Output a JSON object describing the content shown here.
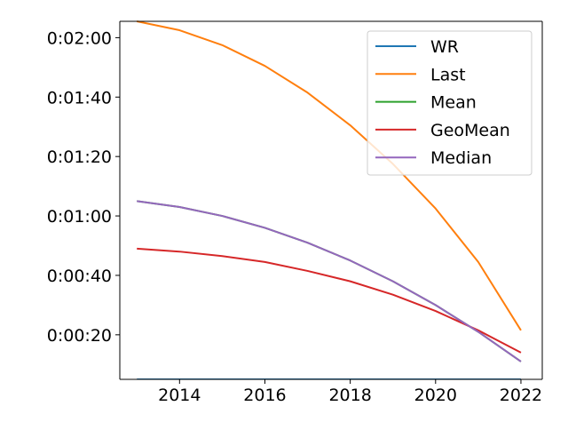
{
  "chart_data": {
    "type": "line",
    "title": "",
    "xlabel": "",
    "ylabel": "",
    "x": [
      2013,
      2014,
      2015,
      2016,
      2017,
      2018,
      2019,
      2020,
      2021,
      2022
    ],
    "xlim": [
      2012.6,
      2022.5
    ],
    "ylim": [
      5,
      125.5
    ],
    "y_unit": "seconds",
    "x_ticks": [
      2014,
      2016,
      2018,
      2020,
      2022
    ],
    "x_tick_labels": [
      "2014",
      "2016",
      "2018",
      "2020",
      "2022"
    ],
    "y_ticks": [
      20,
      40,
      60,
      80,
      100,
      120
    ],
    "y_tick_labels": [
      "0:00:20",
      "0:00:40",
      "0:01:00",
      "0:01:20",
      "0:01:40",
      "0:02:00"
    ],
    "grid": false,
    "legend_position": "upper-right",
    "series": [
      {
        "name": "WR",
        "color": "#1f77b4",
        "values": [
          5,
          5,
          5,
          5,
          5,
          5,
          5,
          5,
          5,
          5
        ]
      },
      {
        "name": "Last",
        "color": "#ff7f0e",
        "values": [
          125.5,
          122.5,
          117.5,
          110.5,
          101.5,
          90.5,
          77.5,
          62.5,
          44.5,
          21.5
        ]
      },
      {
        "name": "Mean",
        "color": "#2ca02c",
        "values": [
          65,
          63,
          60,
          56,
          51,
          45,
          38,
          30,
          21,
          11
        ]
      },
      {
        "name": "GeoMean",
        "color": "#d62728",
        "values": [
          49,
          48,
          46.5,
          44.5,
          41.5,
          38,
          33.5,
          28,
          21.5,
          14
        ]
      },
      {
        "name": "Median",
        "color": "#9467bd",
        "values": [
          65,
          63,
          60,
          56,
          51,
          45,
          38,
          30,
          21,
          11
        ]
      }
    ]
  }
}
